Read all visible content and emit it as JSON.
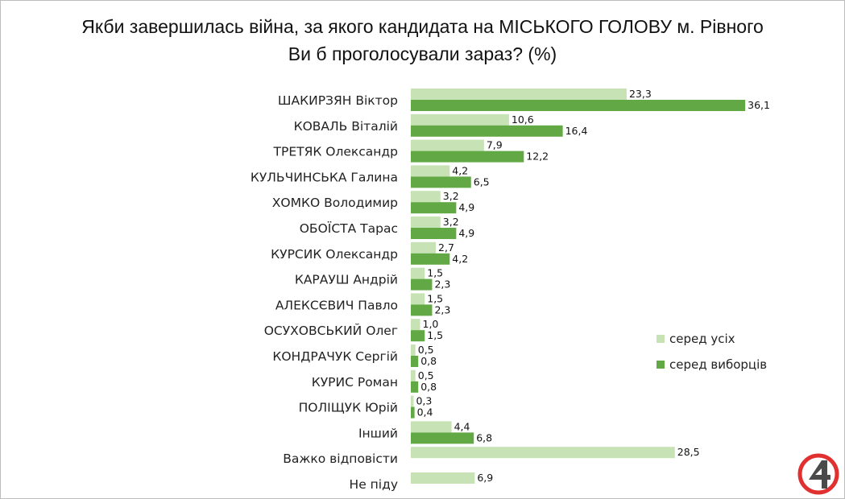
{
  "title_line1": "Якби завершилась війна, за якого кандидата на МІСЬКОГО ГОЛОВУ м. Рівного",
  "title_line2": "Ви б проголосували зараз? (%)",
  "colors": {
    "all": "#c7e3b5",
    "voters": "#62a844",
    "logo_red": "#e03030"
  },
  "logo_icon": "channel-4-logo",
  "chart_data": {
    "type": "bar",
    "orientation": "horizontal",
    "categories": [
      "ШАКИРЗЯН Віктор",
      "КОВАЛЬ Віталій",
      "ТРЕТЯК Олександр",
      "КУЛЬЧИНСЬКА Галина",
      "ХОМКО Володимир",
      "ОБОЇСТА Тарас",
      "КУРСИК Олександр",
      "КАРАУШ Андрій",
      "АЛЕКСЄВИЧ Павло",
      "ОСУХОВСЬКИЙ Олег",
      "КОНДРАЧУК Сергій",
      "КУРИС Роман",
      "ПОЛІЩУК Юрій",
      "Інший",
      "Важко відповісти",
      "Не піду"
    ],
    "series": [
      {
        "name": "серед усіх",
        "values": [
          "23,3",
          "10,6",
          "7,9",
          "4,2",
          "3,2",
          "3,2",
          "2,7",
          "1,5",
          "1,5",
          "1,0",
          "0,5",
          "0,5",
          "0,3",
          "4,4",
          "28,5",
          "6,9"
        ]
      },
      {
        "name": "серед виборців",
        "values": [
          "36,1",
          "16,4",
          "12,2",
          "6,5",
          "4,9",
          "4,9",
          "4,2",
          "2,3",
          "2,3",
          "1,5",
          "0,8",
          "0,8",
          "0,4",
          "6,8",
          null,
          null
        ]
      }
    ],
    "legend_position": "right",
    "grid": false
  }
}
